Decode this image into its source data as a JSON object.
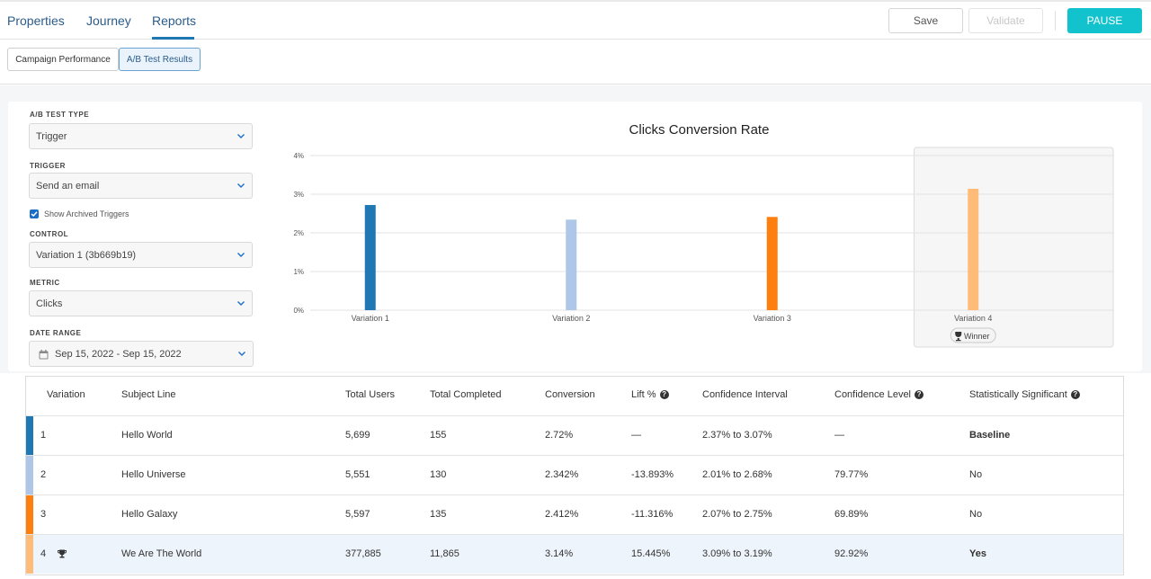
{
  "nav": {
    "tabs": [
      {
        "label": "Properties"
      },
      {
        "label": "Journey"
      },
      {
        "label": "Reports"
      }
    ],
    "active_tab": "Reports",
    "save_label": "Save",
    "validate_label": "Validate",
    "pause_label": "PAUSE"
  },
  "subtabs": {
    "campaign_performance": "Campaign Performance",
    "ab_test_results": "A/B Test Results"
  },
  "filters": {
    "ab_test_type": {
      "label": "A/B TEST TYPE",
      "value": "Trigger"
    },
    "trigger": {
      "label": "TRIGGER",
      "value": "Send an email"
    },
    "show_archived": {
      "label": "Show Archived Triggers",
      "checked": true
    },
    "control": {
      "label": "CONTROL",
      "value": "Variation 1 (3b669b19)"
    },
    "metric": {
      "label": "METRIC",
      "value": "Clicks"
    },
    "date_range": {
      "label": "DATE RANGE",
      "value": "Sep 15, 2022 - Sep 15, 2022"
    }
  },
  "chart_data": {
    "type": "bar",
    "title": "Clicks Conversion Rate",
    "categories": [
      "Variation 1",
      "Variation 2",
      "Variation 3",
      "Variation 4"
    ],
    "values": [
      2.72,
      2.342,
      2.412,
      3.14
    ],
    "colors": [
      "#1f77b4",
      "#aec7e8",
      "#ff7f0e",
      "#ffbb78"
    ],
    "ylim": [
      0,
      4
    ],
    "yticks": [
      "0%",
      "1%",
      "2%",
      "3%",
      "4%"
    ],
    "highlight_category": "Variation 4",
    "winner_badge": "Winner",
    "grid": true
  },
  "table": {
    "headers": {
      "variation": "Variation",
      "subject_line": "Subject Line",
      "total_users": "Total Users",
      "total_completed": "Total Completed",
      "conversion": "Conversion",
      "lift": "Lift %",
      "confidence_interval": "Confidence Interval",
      "confidence_level": "Confidence Level",
      "statistically_significant": "Statistically Significant"
    },
    "rows": [
      {
        "variation": "1",
        "subject_line": "Hello World",
        "total_users": "5,699",
        "total_completed": "155",
        "conversion": "2.72%",
        "lift": "—",
        "confidence_interval": "2.37% to 3.07%",
        "confidence_level": "—",
        "significant": "Baseline",
        "color": "#1f77b4",
        "winner": false
      },
      {
        "variation": "2",
        "subject_line": "Hello Universe",
        "total_users": "5,551",
        "total_completed": "130",
        "conversion": "2.342%",
        "lift": "-13.893%",
        "confidence_interval": "2.01% to 2.68%",
        "confidence_level": "79.77%",
        "significant": "No",
        "color": "#aec7e8",
        "winner": false
      },
      {
        "variation": "3",
        "subject_line": "Hello Galaxy",
        "total_users": "5,597",
        "total_completed": "135",
        "conversion": "2.412%",
        "lift": "-11.316%",
        "confidence_interval": "2.07% to 2.75%",
        "confidence_level": "69.89%",
        "significant": "No",
        "color": "#ff7f0e",
        "winner": false
      },
      {
        "variation": "4",
        "subject_line": "We Are The World",
        "total_users": "377,885",
        "total_completed": "11,865",
        "conversion": "3.14%",
        "lift": "15.445%",
        "confidence_interval": "3.09% to 3.19%",
        "confidence_level": "92.92%",
        "significant": "Yes",
        "color": "#ffbb78",
        "winner": true
      }
    ]
  }
}
